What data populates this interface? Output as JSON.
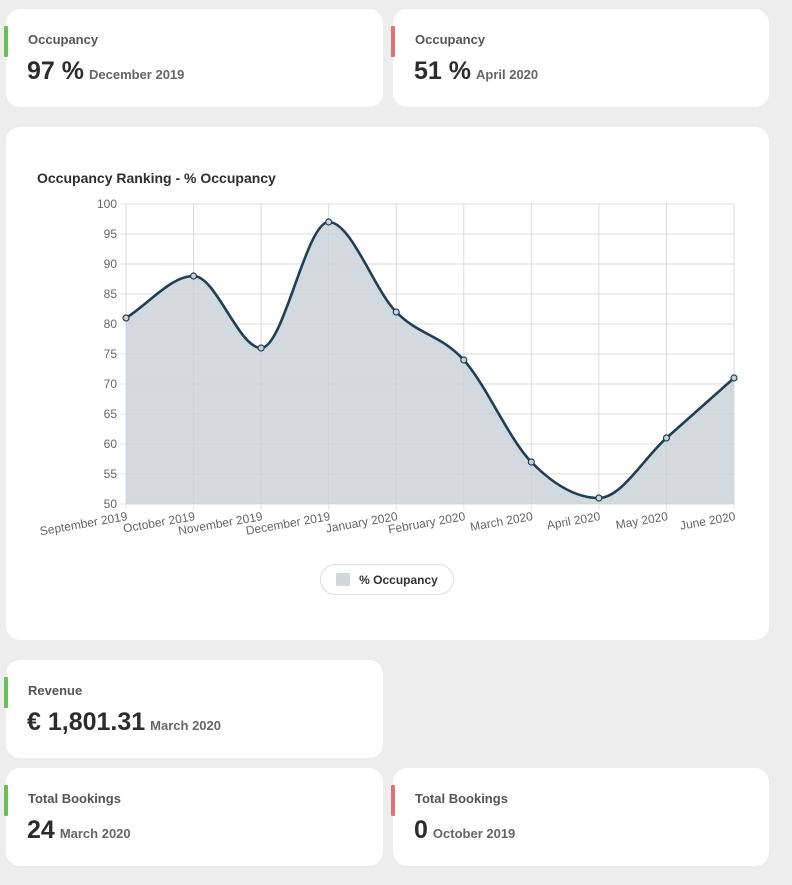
{
  "occupancy_high": {
    "label": "Occupancy",
    "value": "97 %",
    "period": "December 2019"
  },
  "occupancy_low": {
    "label": "Occupancy",
    "value": "51 %",
    "period": "April 2020"
  },
  "revenue": {
    "label": "Revenue",
    "value": "€ 1,801.31",
    "period": "March 2020"
  },
  "bookings_high": {
    "label": "Total Bookings",
    "value": "24",
    "period": "March 2020"
  },
  "bookings_low": {
    "label": "Total Bookings",
    "value": "0",
    "period": "October 2019"
  },
  "colors": {
    "good_accent": "#6bbf59",
    "bad_accent": "#df7474",
    "line": "#1f3f55",
    "fill": "#d0d7dd"
  },
  "chart_data": {
    "type": "area",
    "title": "Occupancy Ranking - % Occupancy",
    "categories": [
      "September 2019",
      "October 2019",
      "November 2019",
      "December 2019",
      "January 2020",
      "February 2020",
      "March 2020",
      "April 2020",
      "May 2020",
      "June 2020"
    ],
    "series": [
      {
        "name": "% Occupancy",
        "values": [
          81,
          88,
          76,
          97,
          82,
          74,
          57,
          51,
          61,
          71
        ]
      }
    ],
    "ylim": [
      50,
      100
    ],
    "yticks": [
      50,
      55,
      60,
      65,
      70,
      75,
      80,
      85,
      90,
      95,
      100
    ],
    "grid": true,
    "legend": "bottom-center"
  }
}
